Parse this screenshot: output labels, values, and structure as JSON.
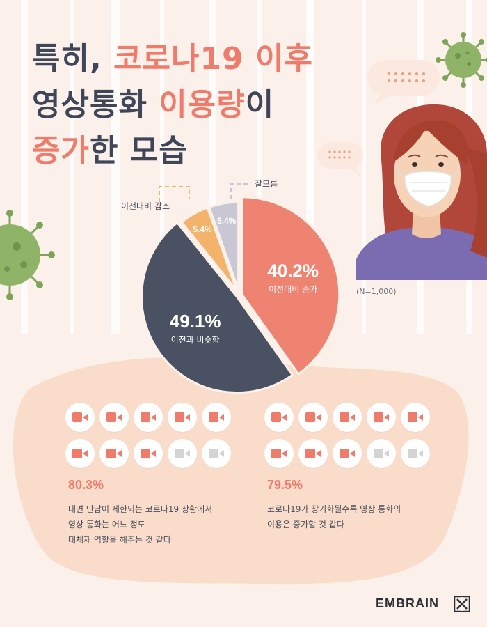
{
  "title": {
    "line1_a": "특히, ",
    "line1_b": "코로나19 이후",
    "line2_a": "영상통화 ",
    "line2_b": "이용량",
    "line2_c": "이",
    "line3_a": "증가",
    "line3_b": "한 모습"
  },
  "sample_note": "(N=1,000)",
  "colors": {
    "title_dark": "#3f4658",
    "accent": "#ef7b6b",
    "increase": "#ef8372",
    "same": "#4a5162",
    "decrease": "#f4b36b",
    "unknown": "#c9c7d3",
    "blob": "#f9dcc9",
    "icon_on": "#ef7b6b",
    "icon_off": "#d4d4d4"
  },
  "chart_data": {
    "type": "pie",
    "slices": [
      {
        "label": "이전대비 증가",
        "value": 40.2,
        "display": "40.2%"
      },
      {
        "label": "이전과 비슷함",
        "value": 49.1,
        "display": "49.1%"
      },
      {
        "label": "이전대비 감소",
        "value": 5.4,
        "display": "5.4%"
      },
      {
        "label": "잘모름",
        "value": 5.4,
        "display": "5.4%"
      }
    ]
  },
  "stats": [
    {
      "percent": "80.3%",
      "icons_on": 8,
      "icons_total": 10,
      "lines": [
        "대면 만남이 제한되는 코로나19 상황에서",
        "영상 통화는 어느 정도",
        "대체재 역할을 해주는 것 같다"
      ]
    },
    {
      "percent": "79.5%",
      "icons_on": 8,
      "icons_total": 10,
      "lines": [
        "코로나19가 장기화될수록 영상 통화의",
        "이용은 증가할 것 같다"
      ]
    }
  ],
  "brand": "EMBRAIN",
  "icons": {
    "camera": "video-camera-icon",
    "virus": "virus-icon",
    "speech": "speech-bubble-icon",
    "person": "masked-woman-illustration",
    "logo": "embrain-logo-mark"
  }
}
